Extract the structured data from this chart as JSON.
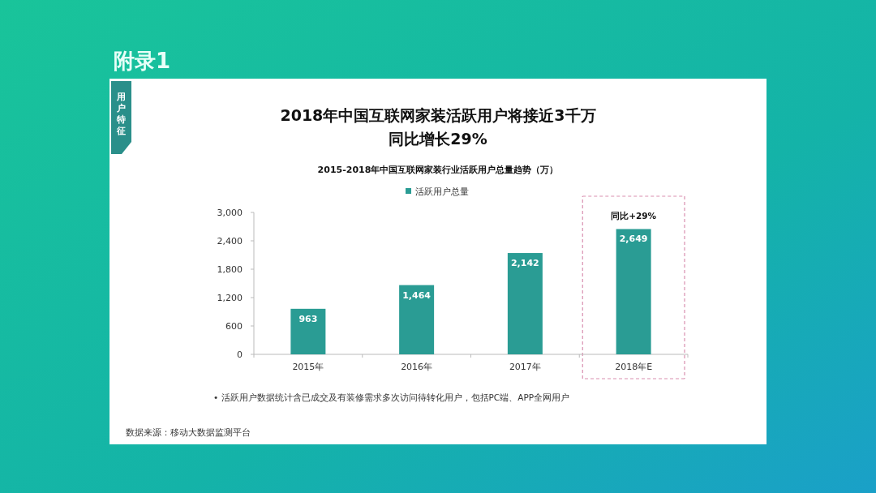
{
  "chart_data": {
    "type": "bar",
    "title": "2018年中国互联网家装活跃用户将接近3千万同比增长29%",
    "subtitle": "2015-2018年中国互联网家装行业活跃用户总量趋势（万）",
    "categories": [
      "2015年",
      "2016年",
      "2017年",
      "2018年E"
    ],
    "series": [
      {
        "name": "活跃用户总量",
        "color": "#2a9c94",
        "values": [
          963,
          1464,
          2142,
          2649
        ],
        "value_labels": [
          "963",
          "1,464",
          "2,142",
          "2,649"
        ]
      }
    ],
    "ylim": [
      0,
      3000
    ],
    "yticks": [
      0,
      600,
      {
        "value": 1200,
        "label": "1,200"
      },
      {
        "value": 1800,
        "label": "1,800"
      },
      {
        "value": 2400,
        "label": "2,400"
      },
      {
        "value": 3000,
        "label": "3,000"
      }
    ],
    "grid": false,
    "legend": "top",
    "annotations": [
      "附录1",
      "用户特征",
      "同比+29%",
      "•    活跃用户数据统计含已成交及有装修需求多次访问待转化用户，包括PC端、APP全网用户",
      "数据来源：移动大数据监测平台"
    ]
  }
}
